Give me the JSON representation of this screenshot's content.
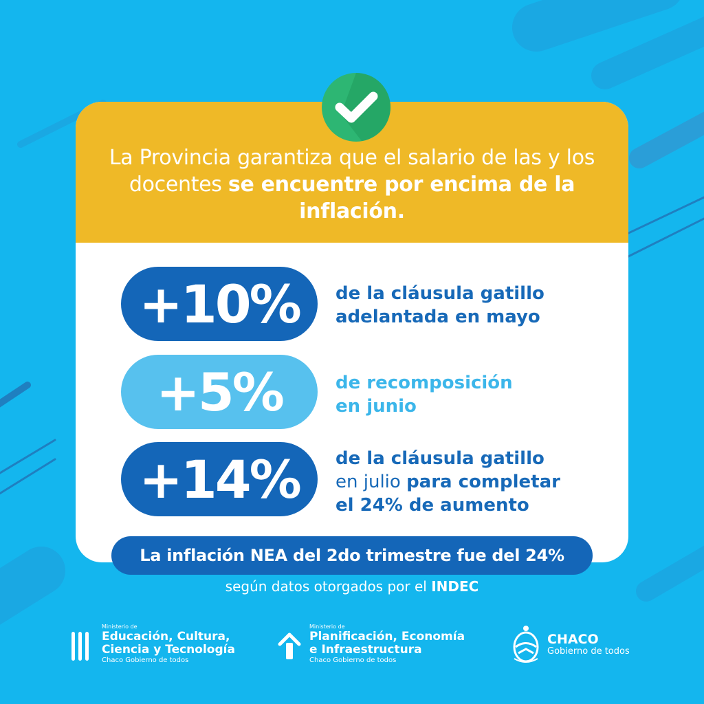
{
  "headline": {
    "part1": "La Provincia garantiza que el salario de las y los docentes ",
    "part2_bold": "se encuentre por encima de la inflación."
  },
  "stats": [
    {
      "value": "+10%",
      "line1": "de la cláusula gatillo",
      "line2": "adelantada en mayo"
    },
    {
      "value": "+5%",
      "line1": "de recomposición",
      "line2": "en junio"
    },
    {
      "value": "+14%",
      "line1": "de la cláusula gatillo",
      "line2_light": "en julio ",
      "line2_bold": "para completar",
      "line3": "el 24% de aumento"
    }
  ],
  "banner": "La inflación NEA del 2do trimestre fue del 24%",
  "source": {
    "text": "según datos otorgados por el ",
    "bold": "INDEC"
  },
  "logos": {
    "education": {
      "ministry": "Ministerio de",
      "line1": "Educación, Cultura,",
      "line2": "Ciencia y Tecnología",
      "tagline": "Chaco Gobierno de todos"
    },
    "planning": {
      "ministry": "Ministerio de",
      "line1": "Planificación, Economía",
      "line2": "e Infraestructura",
      "tagline": "Chaco Gobierno de todos"
    },
    "chaco": {
      "name": "CHACO",
      "tagline": "Gobierno de todos"
    }
  },
  "colors": {
    "background": "#14b6ee",
    "header": "#efb927",
    "dark_blue": "#1466b8",
    "light_blue": "#57c1ee",
    "check_green": "#2db673"
  },
  "icons": {
    "check": "check-circle-icon",
    "education_logo": "education-bars-icon",
    "planning_logo": "house-arrow-icon",
    "chaco_logo": "provincial-shield-icon"
  }
}
